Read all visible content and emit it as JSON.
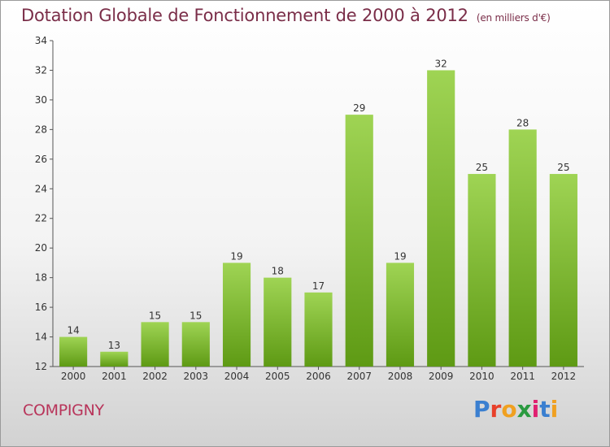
{
  "chart_data": {
    "type": "bar",
    "title": "Dotation Globale de Fonctionnement de 2000 à 2012",
    "subtitle": "(en milliers d'€)",
    "categories": [
      "2000",
      "2001",
      "2002",
      "2003",
      "2004",
      "2005",
      "2006",
      "2007",
      "2008",
      "2009",
      "2010",
      "2011",
      "2012"
    ],
    "values": [
      14,
      13,
      15,
      15,
      19,
      18,
      17,
      29,
      19,
      32,
      25,
      28,
      25
    ],
    "ylim": [
      12,
      34
    ],
    "yticks": [
      12,
      14,
      16,
      18,
      20,
      22,
      24,
      26,
      28,
      30,
      32,
      34
    ],
    "grid": false,
    "bar_color_top": "#9fd454",
    "bar_color_bottom": "#5e9a14"
  },
  "footer": {
    "commune": "COMPIGNY",
    "logo_letters": [
      "P",
      "r",
      "o",
      "x",
      "i",
      "t",
      "i"
    ],
    "logo_colors": [
      "#3a7fd0",
      "#e8402a",
      "#f0a020",
      "#2a9a40",
      "#e02070",
      "#3a7fd0",
      "#f0a020"
    ]
  }
}
